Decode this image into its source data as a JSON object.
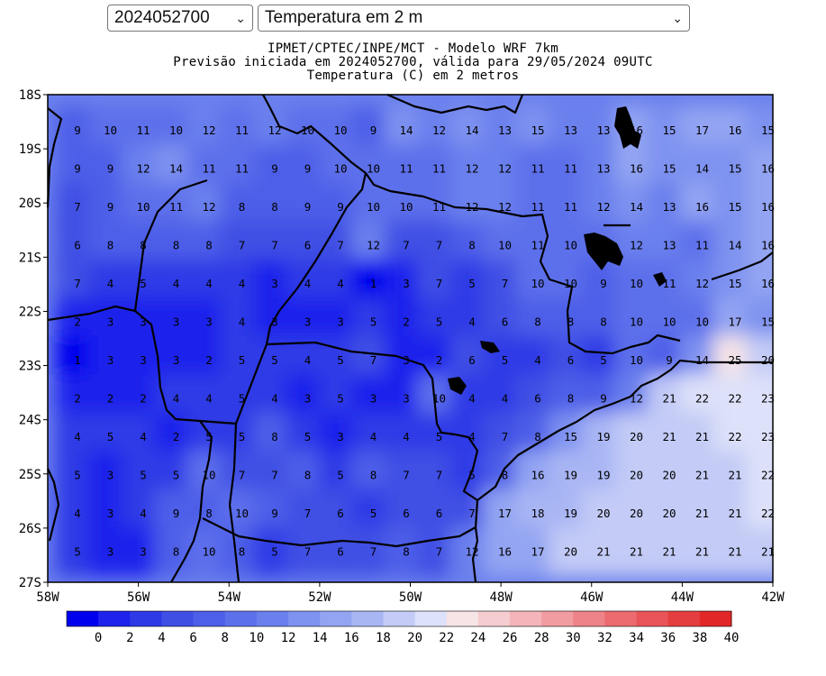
{
  "controls": {
    "date_select": {
      "value": "2024052700"
    },
    "variable_select": {
      "value": "Temperatura em 2 m"
    }
  },
  "header": {
    "line1": "IPMET/CPTEC/INPE/MCT - Modelo WRF 7km",
    "line2": "Previsão iniciada em 2024052700, válida para 29/05/2024 09UTC",
    "line3": "Temperatura (C) em 2 metros"
  },
  "map": {
    "lat_labels": [
      "18S",
      "19S",
      "20S",
      "21S",
      "22S",
      "23S",
      "24S",
      "25S",
      "26S",
      "27S"
    ],
    "lon_labels": [
      "58W",
      "56W",
      "54W",
      "52W",
      "50W",
      "48W",
      "46W",
      "44W",
      "42W"
    ],
    "grid_values": [
      [
        9,
        10,
        11,
        10,
        12,
        11,
        12,
        10,
        10,
        9,
        14,
        12,
        14,
        13,
        15,
        13,
        13,
        16,
        15,
        17,
        16,
        15
      ],
      [
        9,
        9,
        12,
        14,
        11,
        11,
        9,
        9,
        10,
        10,
        11,
        11,
        12,
        12,
        11,
        11,
        13,
        16,
        15,
        14,
        15,
        16
      ],
      [
        7,
        9,
        10,
        11,
        12,
        8,
        8,
        9,
        9,
        10,
        10,
        11,
        12,
        12,
        11,
        11,
        12,
        14,
        13,
        16,
        15,
        16
      ],
      [
        6,
        8,
        8,
        8,
        8,
        7,
        7,
        6,
        7,
        12,
        7,
        7,
        8,
        10,
        11,
        10,
        10,
        12,
        13,
        11,
        14,
        16
      ],
      [
        7,
        4,
        5,
        4,
        4,
        4,
        3,
        4,
        4,
        1,
        3,
        7,
        5,
        7,
        10,
        10,
        9,
        10,
        11,
        12,
        15,
        16
      ],
      [
        2,
        3,
        3,
        3,
        3,
        4,
        3,
        3,
        3,
        5,
        2,
        5,
        4,
        6,
        8,
        8,
        8,
        10,
        10,
        10,
        17,
        15
      ],
      [
        1,
        3,
        3,
        3,
        2,
        5,
        5,
        4,
        5,
        7,
        3,
        2,
        6,
        5,
        4,
        6,
        5,
        10,
        9,
        14,
        25,
        20
      ],
      [
        2,
        2,
        2,
        4,
        4,
        5,
        4,
        3,
        5,
        3,
        3,
        10,
        4,
        4,
        6,
        8,
        9,
        12,
        21,
        22,
        22,
        23
      ],
      [
        4,
        5,
        4,
        2,
        5,
        5,
        8,
        5,
        3,
        4,
        4,
        5,
        4,
        7,
        8,
        15,
        19,
        20,
        21,
        21,
        22,
        23
      ],
      [
        5,
        3,
        5,
        5,
        10,
        7,
        7,
        8,
        5,
        8,
        7,
        7,
        5,
        8,
        16,
        19,
        19,
        20,
        20,
        21,
        21,
        22
      ],
      [
        4,
        3,
        4,
        9,
        8,
        10,
        9,
        7,
        6,
        5,
        6,
        6,
        7,
        17,
        18,
        19,
        20,
        20,
        20,
        21,
        21,
        22
      ],
      [
        5,
        3,
        3,
        8,
        10,
        8,
        5,
        7,
        6,
        7,
        8,
        7,
        12,
        16,
        17,
        20,
        21,
        21,
        21,
        21,
        21,
        21
      ]
    ],
    "colorbar": {
      "labels": [
        "0",
        "2",
        "4",
        "6",
        "8",
        "10",
        "12",
        "14",
        "16",
        "18",
        "20",
        "22",
        "24",
        "26",
        "28",
        "30",
        "32",
        "34",
        "36",
        "38",
        "40"
      ],
      "colors": [
        "#0000ee",
        "#1e22ec",
        "#2e3ae6",
        "#3f4fe4",
        "#4d5fe8",
        "#5d70eb",
        "#6b80ed",
        "#7e92f0",
        "#93a4f2",
        "#a9b6f4",
        "#c3cbf6",
        "#dde1f9",
        "#f6e4e6",
        "#f5cccf",
        "#f3b5b9",
        "#f19ca1",
        "#ee8389",
        "#eb6b70",
        "#e85458",
        "#e53e40",
        "#e22727"
      ]
    }
  }
}
